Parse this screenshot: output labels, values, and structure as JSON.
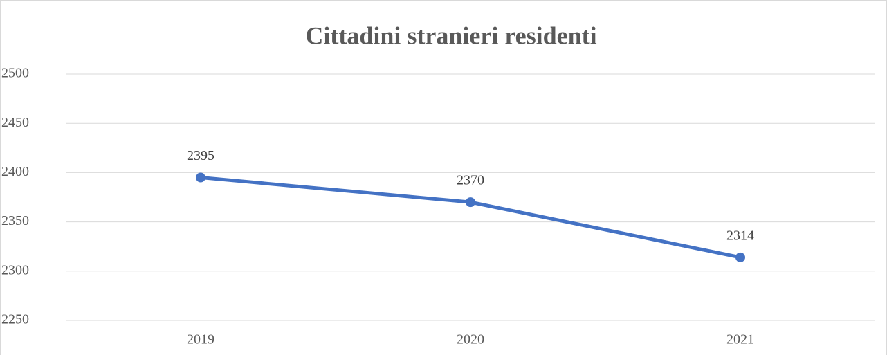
{
  "chart_data": {
    "type": "line",
    "title": "Cittadini stranieri residenti",
    "categories": [
      "2019",
      "2020",
      "2021"
    ],
    "values": [
      2395,
      2370,
      2314
    ],
    "color": "#4472c4",
    "ylim": [
      2250,
      2500
    ],
    "yticks": [
      2250,
      2300,
      2350,
      2400,
      2450,
      2500
    ],
    "grid": true
  }
}
